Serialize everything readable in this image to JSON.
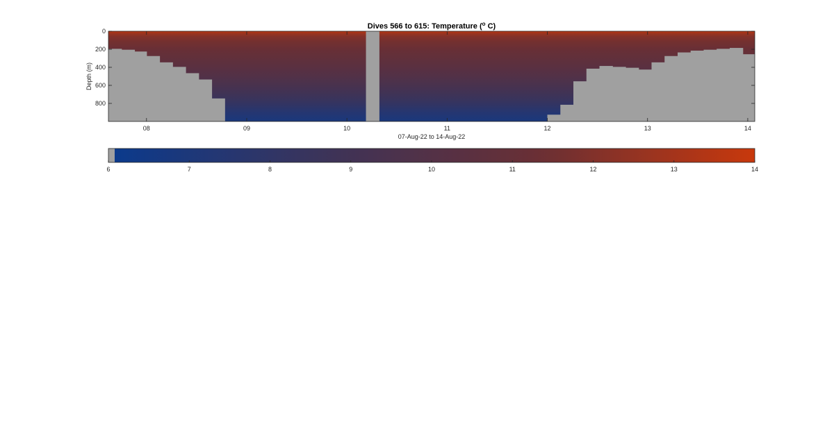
{
  "chart_data": {
    "type": "heatmap",
    "title": "Dives 566 to 615: Temperature (",
    "title_superscript": "o",
    "title_suffix": " C)",
    "xlabel": "07-Aug-22 to 14-Aug-22",
    "ylabel": "Depth (m)",
    "x_unit": "days of August 2022",
    "xlim": [
      7.62,
      14.07
    ],
    "ylim": [
      0,
      1000
    ],
    "y_reversed": true,
    "x_ticks": [
      8,
      9,
      10,
      11,
      12,
      13,
      14
    ],
    "x_tick_labels": [
      "08",
      "09",
      "10",
      "11",
      "12",
      "13",
      "14"
    ],
    "y_ticks": [
      0,
      200,
      400,
      600,
      800
    ],
    "y_tick_labels": [
      "0",
      "200",
      "400",
      "600",
      "800"
    ],
    "grid": false,
    "no_data_color": "#a0a0a0",
    "colormap": [
      "#0b3a8c",
      "#3d3358",
      "#6a2f34",
      "#c8380c"
    ],
    "colorbar": {
      "placement": "bottom",
      "range": [
        6,
        14
      ],
      "ticks": [
        6,
        7,
        8,
        9,
        10,
        11,
        12,
        13,
        14
      ],
      "tick_labels": [
        "6",
        "7",
        "8",
        "9",
        "10",
        "11",
        "12",
        "13",
        "14"
      ]
    },
    "temperature_profile": {
      "depth": [
        0,
        20,
        60,
        120,
        200,
        300,
        400,
        500,
        600,
        700,
        800,
        900,
        1000
      ],
      "temp": [
        13.8,
        12.8,
        12.0,
        11.6,
        11.2,
        10.8,
        10.4,
        9.9,
        9.4,
        8.8,
        8.2,
        7.4,
        6.8
      ]
    },
    "no_data_columns": [
      {
        "x0": 7.62,
        "x1": 7.75,
        "top": 195
      },
      {
        "x0": 7.75,
        "x1": 7.88,
        "top": 205
      },
      {
        "x0": 7.88,
        "x1": 8.0,
        "top": 225
      },
      {
        "x0": 8.0,
        "x1": 8.13,
        "top": 275
      },
      {
        "x0": 8.13,
        "x1": 8.26,
        "top": 345
      },
      {
        "x0": 8.26,
        "x1": 8.39,
        "top": 395
      },
      {
        "x0": 8.39,
        "x1": 8.52,
        "top": 465
      },
      {
        "x0": 8.52,
        "x1": 8.65,
        "top": 535
      },
      {
        "x0": 8.65,
        "x1": 8.78,
        "top": 745
      },
      {
        "x0": 10.19,
        "x1": 10.32,
        "top": 0
      },
      {
        "x0": 12.0,
        "x1": 12.13,
        "top": 925
      },
      {
        "x0": 12.13,
        "x1": 12.26,
        "top": 815
      },
      {
        "x0": 12.26,
        "x1": 12.39,
        "top": 555
      },
      {
        "x0": 12.39,
        "x1": 12.52,
        "top": 415
      },
      {
        "x0": 12.52,
        "x1": 12.65,
        "top": 385
      },
      {
        "x0": 12.65,
        "x1": 12.78,
        "top": 395
      },
      {
        "x0": 12.78,
        "x1": 12.91,
        "top": 405
      },
      {
        "x0": 12.91,
        "x1": 13.04,
        "top": 425
      },
      {
        "x0": 13.04,
        "x1": 13.17,
        "top": 345
      },
      {
        "x0": 13.17,
        "x1": 13.3,
        "top": 275
      },
      {
        "x0": 13.3,
        "x1": 13.43,
        "top": 235
      },
      {
        "x0": 13.43,
        "x1": 13.56,
        "top": 215
      },
      {
        "x0": 13.56,
        "x1": 13.69,
        "top": 205
      },
      {
        "x0": 13.69,
        "x1": 13.82,
        "top": 195
      },
      {
        "x0": 13.82,
        "x1": 13.95,
        "top": 185
      },
      {
        "x0": 13.95,
        "x1": 14.07,
        "top": 255
      }
    ]
  }
}
